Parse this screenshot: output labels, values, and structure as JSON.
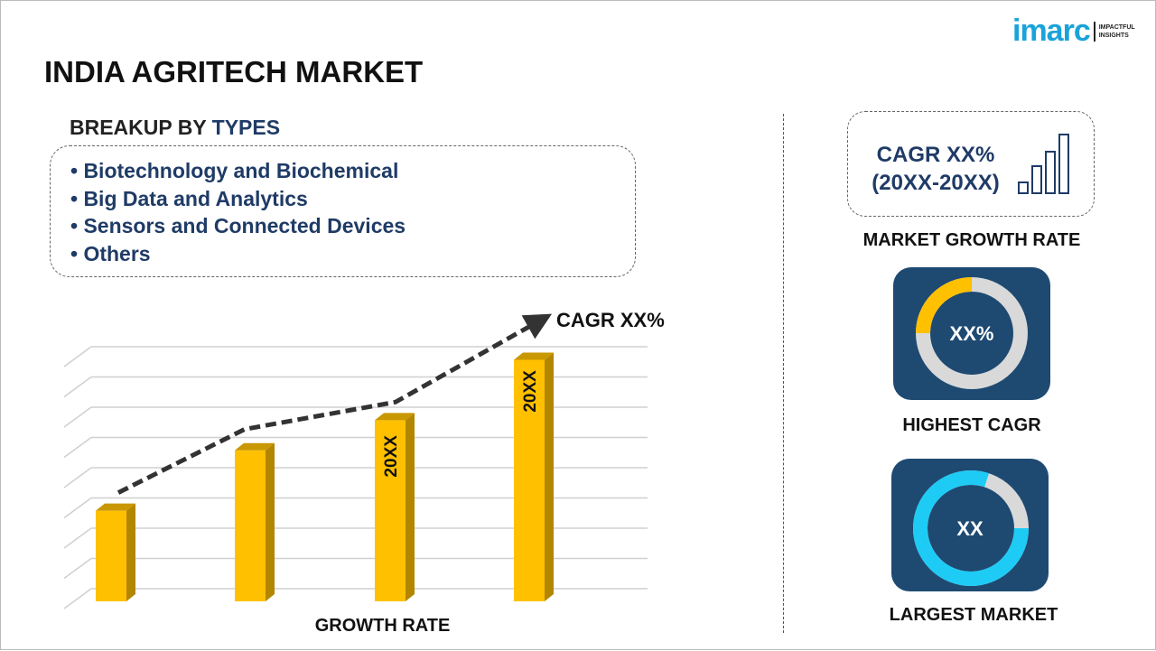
{
  "header": {
    "title": "INDIA AGRITECH MARKET",
    "logo": {
      "brand": "imarc",
      "tagline": [
        "IMPACTFUL",
        "INSIGHTS"
      ]
    }
  },
  "breakup": {
    "prefix": "BREAKUP BY ",
    "highlight": "TYPES",
    "items": [
      "• Biotechnology and Biochemical",
      "• Big Data and Analytics",
      "• Sensors and Connected Devices",
      "• Others"
    ]
  },
  "chart_data": {
    "type": "bar",
    "xlabel": "GROWTH RATE",
    "categories": [
      "",
      "",
      "",
      ""
    ],
    "values": [
      3,
      5,
      6,
      8
    ],
    "bar_labels": [
      "",
      "",
      "20XX",
      "20XX"
    ],
    "trend_annotation": "CAGR XX%",
    "trend_values": [
      3.6,
      5.7,
      6.6,
      9.3
    ],
    "ylim": [
      0,
      9
    ],
    "grid": true,
    "bar_color": "#FFC000"
  },
  "side": {
    "cagr_line1": "CAGR XX%",
    "cagr_line2": "(20XX-20XX)",
    "market_growth_rate": "MARKET GROWTH RATE",
    "highest_cagr_value": "XX%",
    "highest_cagr": "HIGHEST CAGR",
    "largest_market_value": "XX",
    "largest_market": "LARGEST MARKET",
    "highest_cagr_fraction": 0.25,
    "largest_market_fraction": 0.8,
    "colors": {
      "navy": "#1E4A72",
      "yellow": "#FFC000",
      "cyan": "#1ECBF5",
      "grey": "#D9D9D9"
    }
  }
}
